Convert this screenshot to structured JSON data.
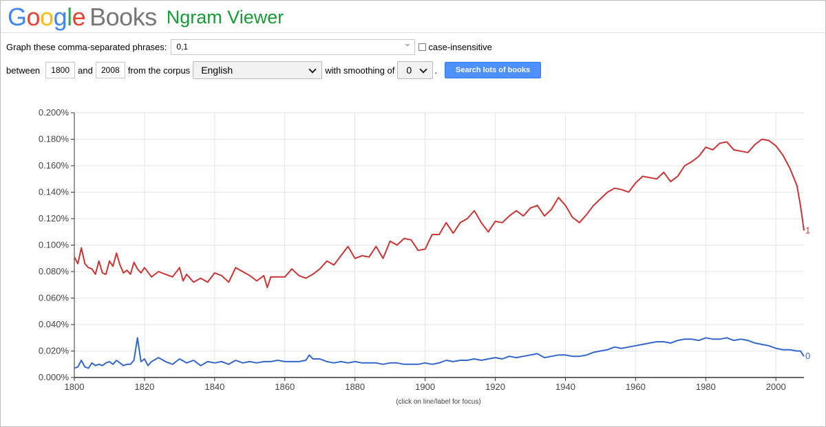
{
  "header": {
    "logo_google": "Google",
    "logo_books": "Books",
    "title": "Ngram Viewer",
    "google_colors": [
      "#4285f4",
      "#ea4335",
      "#fbbc05",
      "#4285f4",
      "#34a853",
      "#ea4335"
    ]
  },
  "form": {
    "phrases_label": "Graph these comma-separated phrases:",
    "phrases_value": "0,1",
    "case_label": "case-insensitive",
    "between_label": "between",
    "start_year": "1800",
    "and_label": "and",
    "end_year": "2008",
    "corpus_label": "from the corpus",
    "corpus_value": "English",
    "smoothing_label": "with smoothing of",
    "smoothing_value": "0",
    "period": ".",
    "search_label": "Search lots of books"
  },
  "chart_data": {
    "type": "line",
    "title": "",
    "xlabel": "",
    "ylabel": "",
    "xlim": [
      1800,
      2008
    ],
    "ylim": [
      0,
      0.2
    ],
    "y_ticks": [
      "0.000%",
      "0.020%",
      "0.040%",
      "0.060%",
      "0.080%",
      "0.100%",
      "0.120%",
      "0.140%",
      "0.160%",
      "0.180%",
      "0.200%"
    ],
    "x_ticks": [
      "1800",
      "1820",
      "1840",
      "1860",
      "1880",
      "1900",
      "1920",
      "1940",
      "1960",
      "1980",
      "2000"
    ],
    "grid": true,
    "footnote": "(click on line/label for focus)",
    "series": [
      {
        "name": "1",
        "color": "#cc3333",
        "x": [
          1800,
          1801,
          1802,
          1803,
          1804,
          1805,
          1806,
          1807,
          1808,
          1809,
          1810,
          1811,
          1812,
          1813,
          1814,
          1815,
          1816,
          1817,
          1818,
          1819,
          1820,
          1822,
          1824,
          1826,
          1828,
          1830,
          1831,
          1832,
          1834,
          1836,
          1838,
          1840,
          1842,
          1844,
          1846,
          1848,
          1850,
          1852,
          1854,
          1855,
          1856,
          1858,
          1860,
          1862,
          1864,
          1866,
          1868,
          1870,
          1872,
          1874,
          1876,
          1878,
          1880,
          1882,
          1884,
          1886,
          1888,
          1890,
          1892,
          1894,
          1896,
          1898,
          1900,
          1902,
          1904,
          1906,
          1908,
          1910,
          1912,
          1914,
          1916,
          1918,
          1920,
          1922,
          1924,
          1926,
          1928,
          1930,
          1932,
          1934,
          1936,
          1938,
          1940,
          1942,
          1944,
          1946,
          1948,
          1950,
          1952,
          1954,
          1956,
          1958,
          1960,
          1962,
          1964,
          1966,
          1968,
          1970,
          1972,
          1974,
          1976,
          1978,
          1980,
          1982,
          1984,
          1986,
          1988,
          1990,
          1992,
          1994,
          1996,
          1998,
          2000,
          2002,
          2004,
          2006,
          2007,
          2008
        ],
        "values": [
          0.091,
          0.086,
          0.098,
          0.086,
          0.083,
          0.082,
          0.078,
          0.088,
          0.079,
          0.078,
          0.088,
          0.084,
          0.094,
          0.085,
          0.079,
          0.081,
          0.078,
          0.087,
          0.082,
          0.079,
          0.083,
          0.076,
          0.08,
          0.078,
          0.076,
          0.083,
          0.073,
          0.078,
          0.072,
          0.075,
          0.072,
          0.079,
          0.077,
          0.072,
          0.083,
          0.08,
          0.077,
          0.073,
          0.077,
          0.068,
          0.076,
          0.076,
          0.076,
          0.082,
          0.077,
          0.075,
          0.078,
          0.082,
          0.088,
          0.085,
          0.092,
          0.099,
          0.09,
          0.092,
          0.091,
          0.099,
          0.09,
          0.103,
          0.1,
          0.105,
          0.104,
          0.096,
          0.097,
          0.108,
          0.108,
          0.117,
          0.109,
          0.117,
          0.12,
          0.126,
          0.117,
          0.11,
          0.118,
          0.117,
          0.122,
          0.126,
          0.122,
          0.128,
          0.13,
          0.122,
          0.127,
          0.136,
          0.13,
          0.121,
          0.117,
          0.123,
          0.13,
          0.135,
          0.14,
          0.143,
          0.142,
          0.14,
          0.147,
          0.152,
          0.151,
          0.15,
          0.155,
          0.148,
          0.152,
          0.16,
          0.163,
          0.167,
          0.174,
          0.172,
          0.177,
          0.178,
          0.172,
          0.171,
          0.17,
          0.176,
          0.18,
          0.179,
          0.175,
          0.168,
          0.158,
          0.145,
          0.13,
          0.111
        ]
      },
      {
        "name": "0",
        "color": "#3366cc",
        "x": [
          1800,
          1801,
          1802,
          1803,
          1804,
          1805,
          1806,
          1807,
          1808,
          1809,
          1810,
          1811,
          1812,
          1813,
          1814,
          1815,
          1816,
          1817,
          1818,
          1819,
          1820,
          1821,
          1822,
          1824,
          1826,
          1828,
          1830,
          1832,
          1834,
          1836,
          1838,
          1840,
          1842,
          1844,
          1846,
          1848,
          1850,
          1852,
          1854,
          1856,
          1858,
          1860,
          1862,
          1864,
          1866,
          1867,
          1868,
          1870,
          1872,
          1874,
          1876,
          1878,
          1880,
          1882,
          1884,
          1886,
          1888,
          1890,
          1892,
          1894,
          1896,
          1898,
          1900,
          1902,
          1904,
          1906,
          1908,
          1910,
          1912,
          1914,
          1916,
          1918,
          1920,
          1922,
          1924,
          1926,
          1928,
          1930,
          1932,
          1934,
          1936,
          1938,
          1940,
          1942,
          1944,
          1946,
          1948,
          1950,
          1952,
          1954,
          1956,
          1958,
          1960,
          1962,
          1964,
          1966,
          1968,
          1970,
          1972,
          1974,
          1976,
          1978,
          1980,
          1982,
          1984,
          1986,
          1988,
          1990,
          1992,
          1994,
          1996,
          1998,
          2000,
          2002,
          2004,
          2006,
          2007,
          2008
        ],
        "values": [
          0.007,
          0.008,
          0.013,
          0.008,
          0.007,
          0.011,
          0.009,
          0.01,
          0.009,
          0.011,
          0.012,
          0.01,
          0.013,
          0.011,
          0.009,
          0.01,
          0.01,
          0.013,
          0.03,
          0.012,
          0.014,
          0.009,
          0.012,
          0.015,
          0.012,
          0.01,
          0.014,
          0.011,
          0.013,
          0.009,
          0.012,
          0.011,
          0.012,
          0.01,
          0.013,
          0.011,
          0.012,
          0.011,
          0.012,
          0.012,
          0.013,
          0.012,
          0.012,
          0.012,
          0.013,
          0.017,
          0.014,
          0.014,
          0.012,
          0.011,
          0.012,
          0.011,
          0.012,
          0.011,
          0.011,
          0.011,
          0.01,
          0.011,
          0.011,
          0.01,
          0.01,
          0.01,
          0.011,
          0.01,
          0.011,
          0.013,
          0.012,
          0.013,
          0.013,
          0.014,
          0.013,
          0.014,
          0.015,
          0.014,
          0.016,
          0.015,
          0.016,
          0.017,
          0.018,
          0.015,
          0.016,
          0.017,
          0.017,
          0.016,
          0.016,
          0.017,
          0.019,
          0.02,
          0.021,
          0.023,
          0.022,
          0.023,
          0.024,
          0.025,
          0.026,
          0.027,
          0.027,
          0.026,
          0.028,
          0.029,
          0.029,
          0.028,
          0.03,
          0.029,
          0.029,
          0.03,
          0.028,
          0.029,
          0.028,
          0.026,
          0.025,
          0.024,
          0.022,
          0.021,
          0.021,
          0.02,
          0.02,
          0.016
        ]
      }
    ]
  }
}
